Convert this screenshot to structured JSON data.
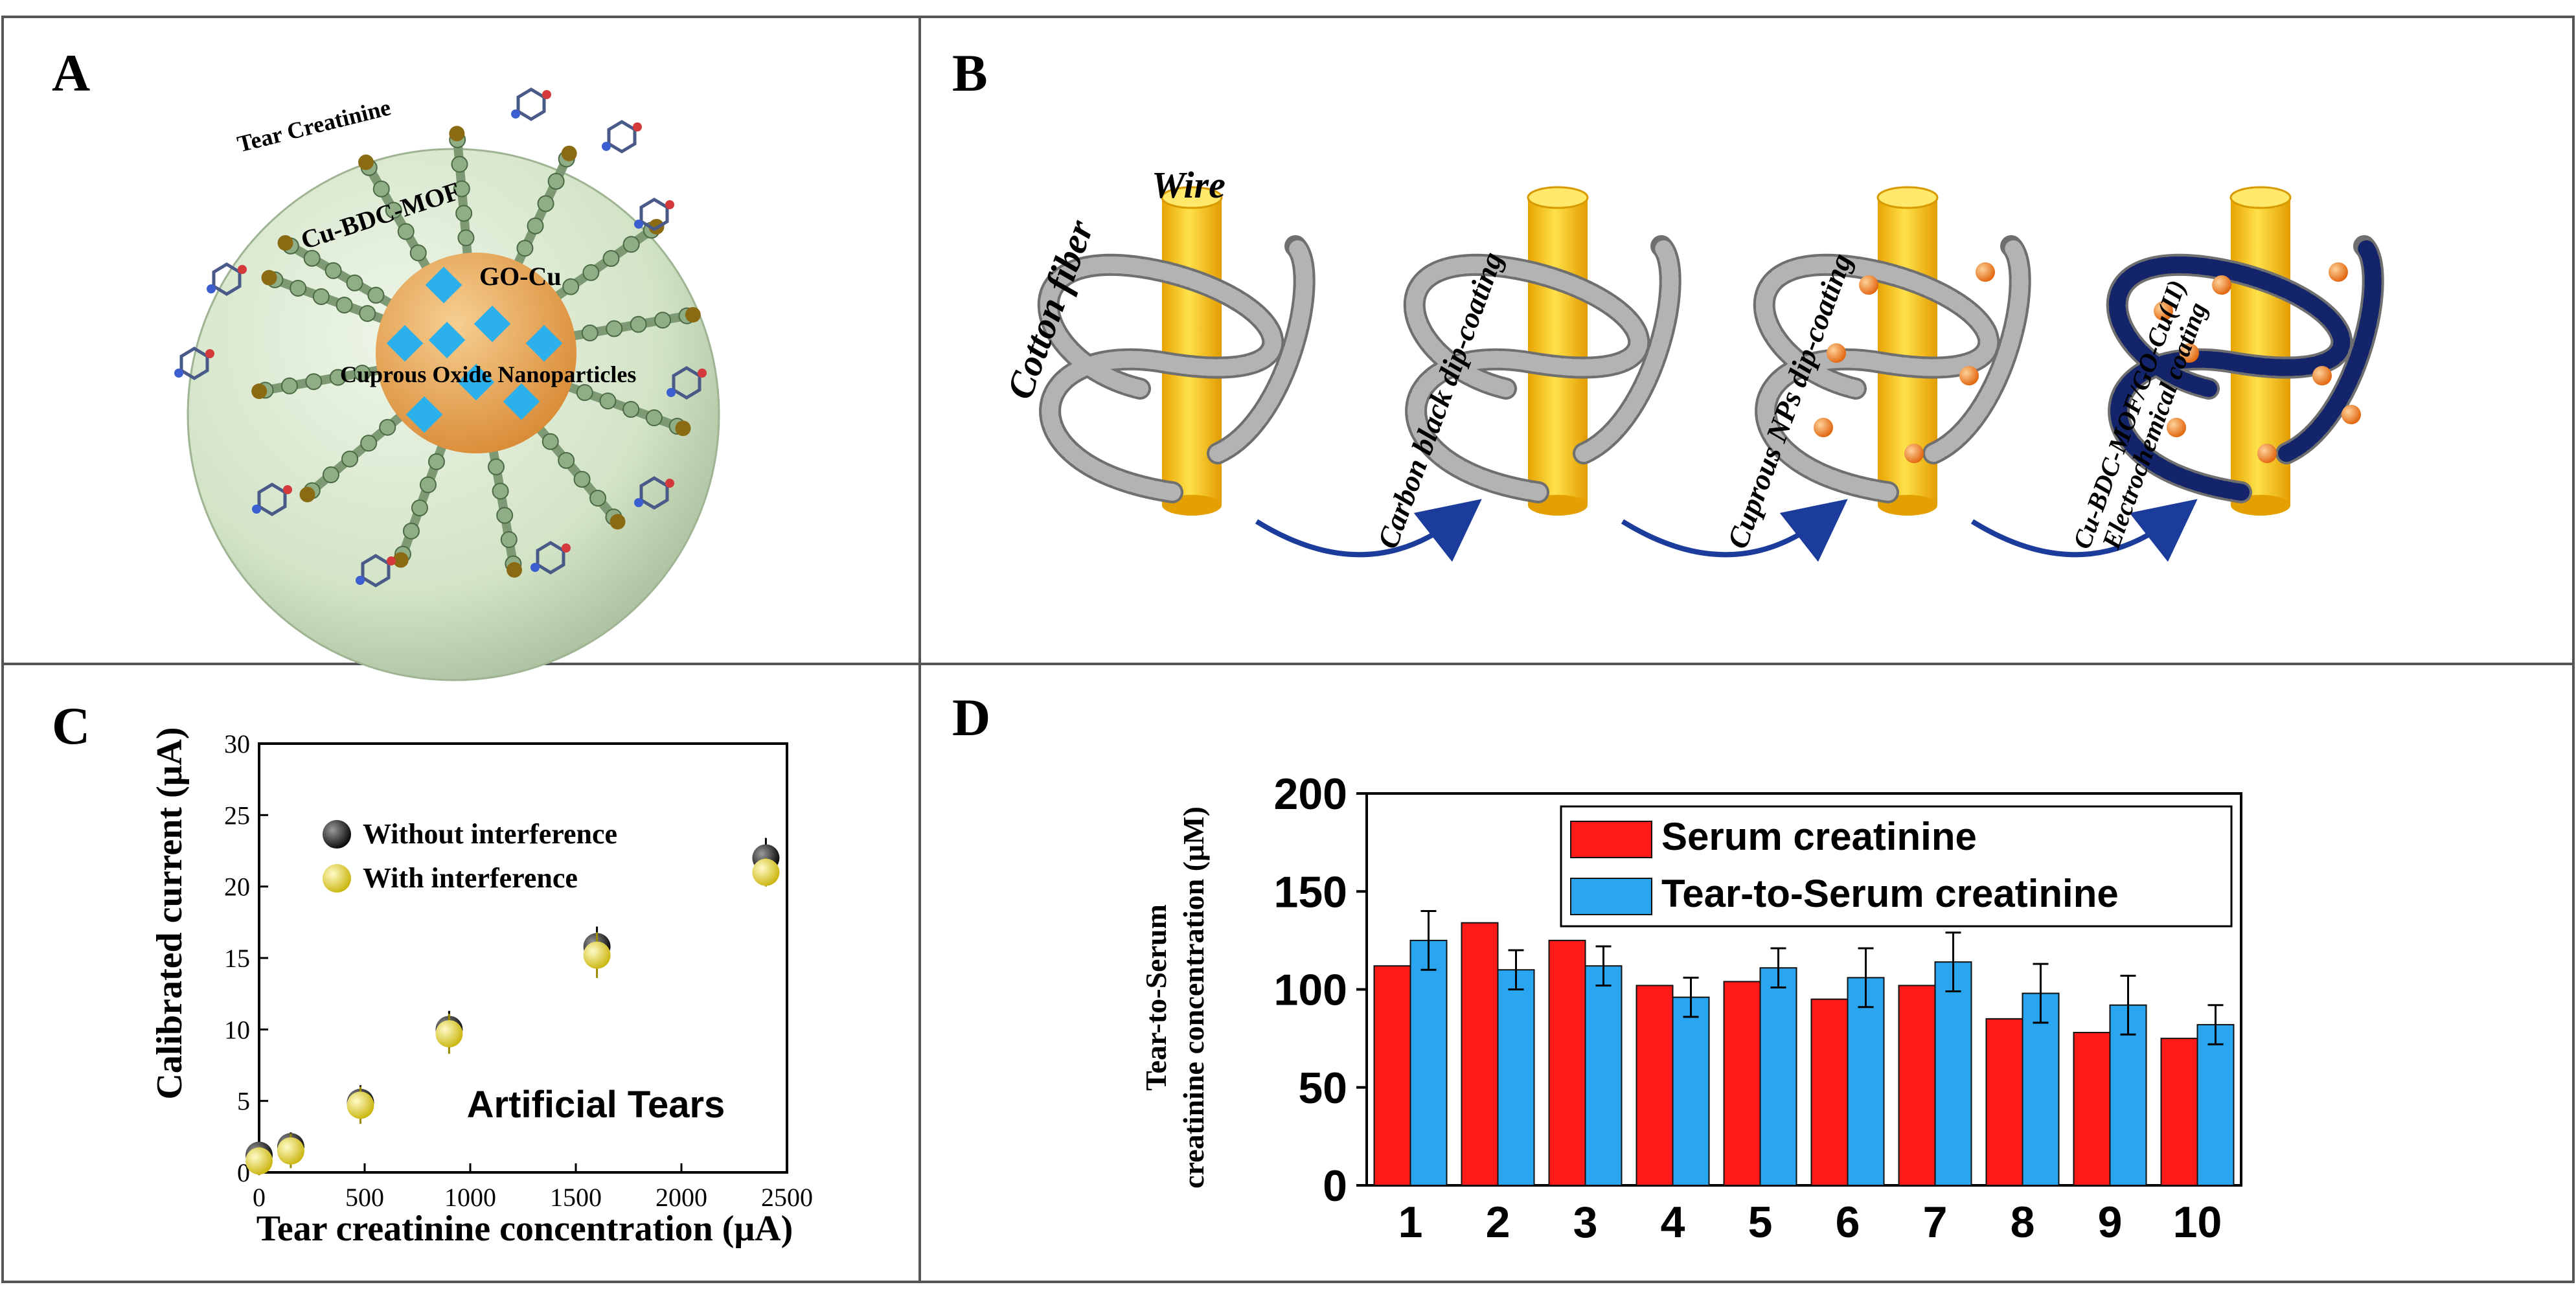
{
  "panels": {
    "A": {
      "letter": "A",
      "labels": {
        "tear_creatinine": "Tear Creatinine",
        "mof": "Cu-BDC-MOF",
        "go_cu": "GO-Cu",
        "nanoparticles": "Cuprous Oxide Nanoparticles"
      }
    },
    "B": {
      "letter": "B",
      "labels": {
        "wire": "Wire",
        "cotton": "Cotton fiber",
        "step1": "Carbon black dip-coating",
        "step2": "Cuprous NPs dip-coating",
        "step3_line1": "Cu-BDC-MOF/GO-Cu(II)",
        "step3_line2": "Electrochemical coating"
      }
    },
    "C": {
      "letter": "C"
    },
    "D": {
      "letter": "D"
    }
  },
  "colors": {
    "sphere": "#d2e3c6",
    "core": "#e8a64c",
    "diamond": "#2bb0ec",
    "wire": "#f6c40d",
    "fiber": "#b3b3b3",
    "bead": "#f07a12",
    "mof_fiber": "#14246a",
    "arrow": "#1b3c9a",
    "series_black": "#111111",
    "series_yellow": "#e3d21b",
    "bar_red": "#ff1a1a",
    "bar_blue": "#2aa5ef"
  },
  "chart_data": [
    {
      "panel": "C",
      "type": "scatter",
      "xlabel": "Tear creatinine concentration (μA)",
      "ylabel": "Calibrated current (μA)",
      "xlim": [
        0,
        2500
      ],
      "ylim": [
        0,
        30
      ],
      "xticks": [
        "0",
        "500",
        "1000",
        "1500",
        "2000",
        "2500"
      ],
      "yticks": [
        "0",
        "5",
        "10",
        "15",
        "20",
        "25",
        "30"
      ],
      "annotation": "Artificial Tears",
      "legend_position": "top-left",
      "series": [
        {
          "name": "Without interference",
          "x": [
            0,
            150,
            480,
            900,
            1600,
            2400
          ],
          "y": [
            1.2,
            1.8,
            4.9,
            10.0,
            15.8,
            22.0
          ],
          "err": [
            1.0,
            1.0,
            1.2,
            1.3,
            1.4,
            1.4
          ]
        },
        {
          "name": "With interference",
          "x": [
            0,
            150,
            480,
            900,
            1600,
            2400
          ],
          "y": [
            0.8,
            1.5,
            4.7,
            9.7,
            15.2,
            21.0
          ],
          "err": [
            1.0,
            1.2,
            1.3,
            1.4,
            1.6,
            1.0
          ]
        }
      ]
    },
    {
      "panel": "D",
      "type": "bar",
      "ylabel_line1": "Tear-to-Serum",
      "ylabel_line2": "creatinine concentration (μM)",
      "xlabel": "",
      "ylim": [
        0,
        200
      ],
      "yticks": [
        "0",
        "50",
        "100",
        "150",
        "200"
      ],
      "categories": [
        "1",
        "2",
        "3",
        "4",
        "5",
        "6",
        "7",
        "8",
        "9",
        "10"
      ],
      "legend_position": "top-right",
      "series": [
        {
          "name": "Serum creatinine",
          "values": [
            112,
            134,
            125,
            102,
            104,
            95,
            102,
            85,
            78,
            75
          ]
        },
        {
          "name": "Tear-to-Serum creatinine",
          "values": [
            125,
            110,
            112,
            96,
            111,
            106,
            114,
            98,
            92,
            82
          ],
          "err": [
            15,
            10,
            10,
            10,
            10,
            15,
            15,
            15,
            15,
            10
          ]
        }
      ]
    }
  ]
}
